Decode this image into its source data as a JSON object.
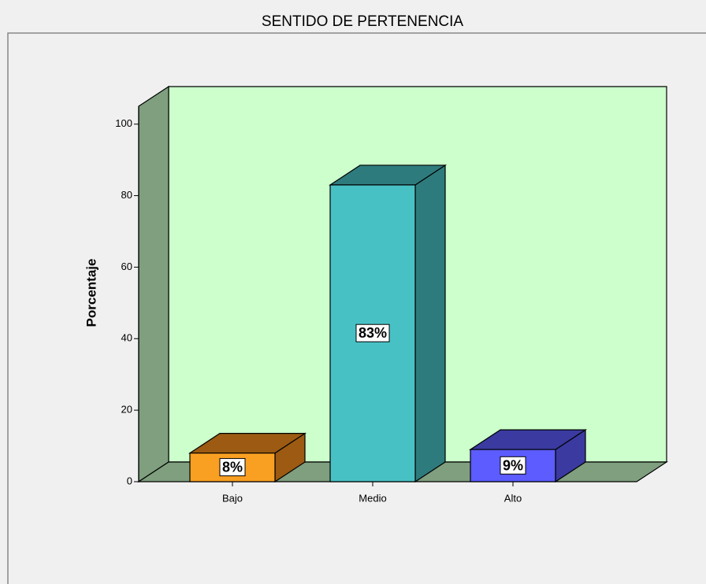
{
  "chart_data": {
    "type": "bar3d",
    "title": "SENTIDO DE PERTENENCIA",
    "y_label": "Porcentaje",
    "categories": [
      "Bajo",
      "Medio",
      "Alto"
    ],
    "values": [
      8,
      83,
      9
    ],
    "value_labels": [
      "8%",
      "83%",
      "9%"
    ],
    "colors": [
      "#f99f22",
      "#48c1c5",
      "#5c5cff"
    ],
    "side_colors": [
      "#9c5a12",
      "#2e7b7d",
      "#3a3aa0"
    ],
    "ylim": [
      0,
      105
    ],
    "yticks": [
      0,
      20,
      40,
      60,
      80,
      100
    ],
    "wall_color": "#ccffcc",
    "floor_color": "#7f9f7f"
  }
}
